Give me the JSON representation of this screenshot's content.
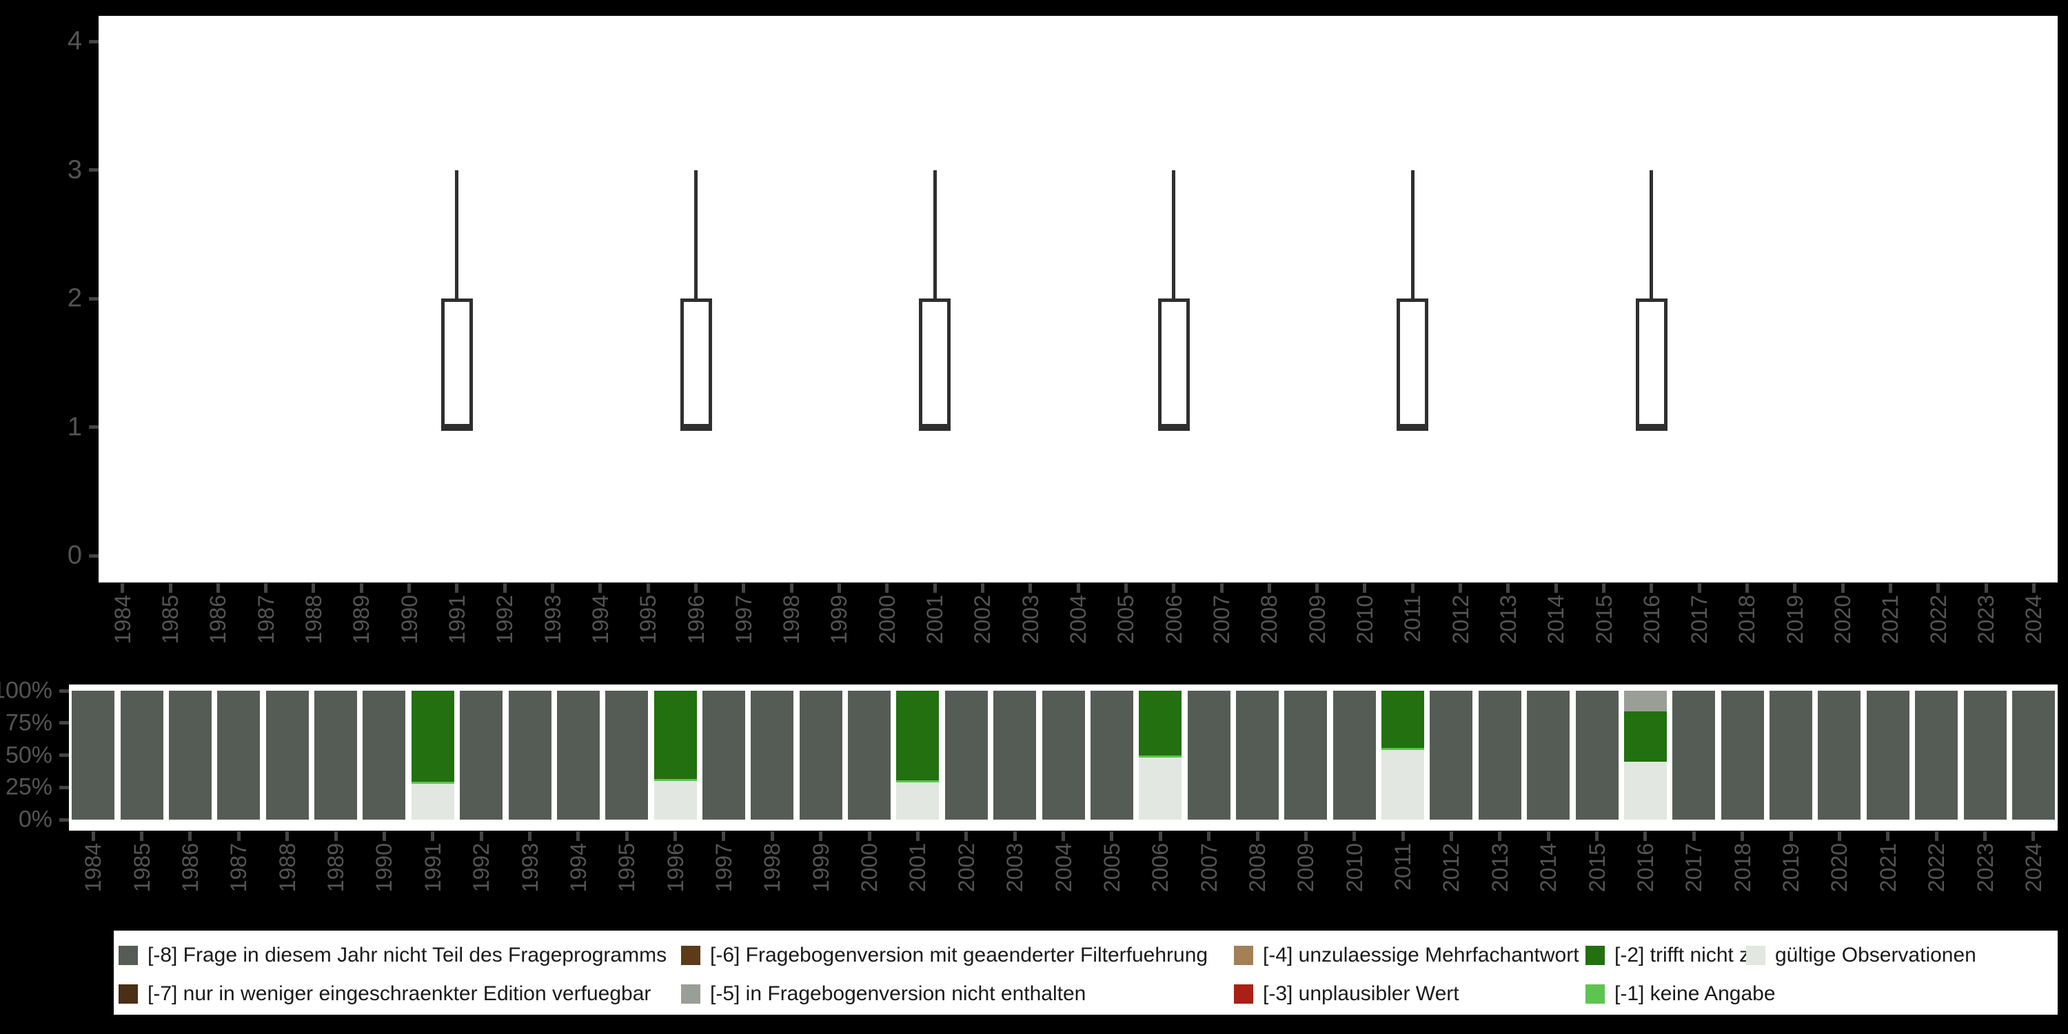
{
  "colors": {
    "background": "#000000",
    "panel": "#ffffff",
    "axis_text": "#545454",
    "tick": "#454545",
    "box_stroke": "#2f2f2f",
    "legend_text": "#1a1a1a",
    "legend_background": "#ffffff"
  },
  "legend": {
    "items": [
      {
        "key": "-8",
        "label": "[-8] Frage in diesem Jahr nicht Teil des Frageprogramms",
        "color": "#555c55"
      },
      {
        "key": "-7",
        "label": "[-7] nur in weniger eingeschraenkter Edition verfuegbar",
        "color": "#4a2e15"
      },
      {
        "key": "-6",
        "label": "[-6] Fragebogenversion mit geaenderter Filterfuehrung",
        "color": "#5d3a18"
      },
      {
        "key": "-5",
        "label": "[-5] in Fragebogenversion nicht enthalten",
        "color": "#999e96"
      },
      {
        "key": "-4",
        "label": "[-4] unzulaessige Mehrfachantwort",
        "color": "#a57f55"
      },
      {
        "key": "-3",
        "label": "[-3] unplausibler Wert",
        "color": "#aa1f16"
      },
      {
        "key": "-2",
        "label": "[-2] trifft nicht zu",
        "color": "#22700f"
      },
      {
        "key": "-1",
        "label": "[-1] keine Angabe",
        "color": "#5dc450"
      },
      {
        "key": "valid",
        "label": "gültige Observationen",
        "color": "#e2e7e1"
      }
    ]
  },
  "chart_data": [
    {
      "type": "boxplot",
      "title": "",
      "xlabel": "",
      "ylabel": "",
      "ylim": [
        0,
        4
      ],
      "yticks": [
        0,
        1,
        2,
        3,
        4
      ],
      "grid": false,
      "categories": [
        "1984",
        "1985",
        "1986",
        "1987",
        "1988",
        "1989",
        "1990",
        "1991",
        "1992",
        "1993",
        "1994",
        "1995",
        "1996",
        "1997",
        "1998",
        "1999",
        "2000",
        "2001",
        "2002",
        "2003",
        "2004",
        "2005",
        "2006",
        "2007",
        "2008",
        "2009",
        "2010",
        "2011",
        "2012",
        "2013",
        "2014",
        "2015",
        "2016",
        "2017",
        "2018",
        "2019",
        "2020",
        "2021",
        "2022",
        "2023",
        "2024"
      ],
      "boxes": [
        {
          "year": "1991",
          "whisker_low": 1,
          "q1": 1,
          "median": 1,
          "q3": 2,
          "whisker_high": 3
        },
        {
          "year": "1996",
          "whisker_low": 1,
          "q1": 1,
          "median": 1,
          "q3": 2,
          "whisker_high": 3
        },
        {
          "year": "2001",
          "whisker_low": 1,
          "q1": 1,
          "median": 1,
          "q3": 2,
          "whisker_high": 3
        },
        {
          "year": "2006",
          "whisker_low": 1,
          "q1": 1,
          "median": 1,
          "q3": 2,
          "whisker_high": 3
        },
        {
          "year": "2011",
          "whisker_low": 1,
          "q1": 1,
          "median": 1,
          "q3": 2,
          "whisker_high": 3
        },
        {
          "year": "2016",
          "whisker_low": 1,
          "q1": 1,
          "median": 1,
          "q3": 2,
          "whisker_high": 3
        }
      ]
    },
    {
      "type": "bar",
      "stacked": true,
      "unit": "percent",
      "title": "",
      "xlabel": "",
      "ylabel": "",
      "yticks_percent": [
        0,
        25,
        50,
        75,
        100
      ],
      "ytick_labels": [
        "0%",
        "25%",
        "50%",
        "75%",
        "100%"
      ],
      "categories": [
        "1984",
        "1985",
        "1986",
        "1987",
        "1988",
        "1989",
        "1990",
        "1991",
        "1992",
        "1993",
        "1994",
        "1995",
        "1996",
        "1997",
        "1998",
        "1999",
        "2000",
        "2001",
        "2002",
        "2003",
        "2004",
        "2005",
        "2006",
        "2007",
        "2008",
        "2009",
        "2010",
        "2011",
        "2012",
        "2013",
        "2014",
        "2015",
        "2016",
        "2017",
        "2018",
        "2019",
        "2020",
        "2021",
        "2022",
        "2023",
        "2024"
      ],
      "bars": [
        {
          "year": "1984",
          "segments": [
            {
              "key": "-8",
              "pct": 100
            }
          ]
        },
        {
          "year": "1985",
          "segments": [
            {
              "key": "-8",
              "pct": 100
            }
          ]
        },
        {
          "year": "1986",
          "segments": [
            {
              "key": "-8",
              "pct": 100
            }
          ]
        },
        {
          "year": "1987",
          "segments": [
            {
              "key": "-8",
              "pct": 100
            }
          ]
        },
        {
          "year": "1988",
          "segments": [
            {
              "key": "-8",
              "pct": 100
            }
          ]
        },
        {
          "year": "1989",
          "segments": [
            {
              "key": "-8",
              "pct": 100
            }
          ]
        },
        {
          "year": "1990",
          "segments": [
            {
              "key": "-8",
              "pct": 100
            }
          ]
        },
        {
          "year": "1991",
          "segments": [
            {
              "key": "valid",
              "pct": 28
            },
            {
              "key": "-1",
              "pct": 1.5
            },
            {
              "key": "-2",
              "pct": 70.5
            }
          ]
        },
        {
          "year": "1992",
          "segments": [
            {
              "key": "-8",
              "pct": 100
            }
          ]
        },
        {
          "year": "1993",
          "segments": [
            {
              "key": "-8",
              "pct": 100
            }
          ]
        },
        {
          "year": "1994",
          "segments": [
            {
              "key": "-8",
              "pct": 100
            }
          ]
        },
        {
          "year": "1995",
          "segments": [
            {
              "key": "-8",
              "pct": 100
            }
          ]
        },
        {
          "year": "1996",
          "segments": [
            {
              "key": "valid",
              "pct": 30
            },
            {
              "key": "-1",
              "pct": 1.5
            },
            {
              "key": "-2",
              "pct": 68.5
            }
          ]
        },
        {
          "year": "1997",
          "segments": [
            {
              "key": "-8",
              "pct": 100
            }
          ]
        },
        {
          "year": "1998",
          "segments": [
            {
              "key": "-8",
              "pct": 100
            }
          ]
        },
        {
          "year": "1999",
          "segments": [
            {
              "key": "-8",
              "pct": 100
            }
          ]
        },
        {
          "year": "2000",
          "segments": [
            {
              "key": "-8",
              "pct": 100
            }
          ]
        },
        {
          "year": "2001",
          "segments": [
            {
              "key": "valid",
              "pct": 29
            },
            {
              "key": "-1",
              "pct": 1.5
            },
            {
              "key": "-2",
              "pct": 69.5
            }
          ]
        },
        {
          "year": "2002",
          "segments": [
            {
              "key": "-8",
              "pct": 100
            }
          ]
        },
        {
          "year": "2003",
          "segments": [
            {
              "key": "-8",
              "pct": 100
            }
          ]
        },
        {
          "year": "2004",
          "segments": [
            {
              "key": "-8",
              "pct": 100
            }
          ]
        },
        {
          "year": "2005",
          "segments": [
            {
              "key": "-8",
              "pct": 100
            }
          ]
        },
        {
          "year": "2006",
          "segments": [
            {
              "key": "valid",
              "pct": 48
            },
            {
              "key": "-1",
              "pct": 1.5
            },
            {
              "key": "-2",
              "pct": 50.5
            }
          ]
        },
        {
          "year": "2007",
          "segments": [
            {
              "key": "-8",
              "pct": 100
            }
          ]
        },
        {
          "year": "2008",
          "segments": [
            {
              "key": "-8",
              "pct": 100
            }
          ]
        },
        {
          "year": "2009",
          "segments": [
            {
              "key": "-8",
              "pct": 100
            }
          ]
        },
        {
          "year": "2010",
          "segments": [
            {
              "key": "-8",
              "pct": 100
            }
          ]
        },
        {
          "year": "2011",
          "segments": [
            {
              "key": "valid",
              "pct": 54
            },
            {
              "key": "-1",
              "pct": 1.5
            },
            {
              "key": "-2",
              "pct": 44.5
            }
          ]
        },
        {
          "year": "2012",
          "segments": [
            {
              "key": "-8",
              "pct": 100
            }
          ]
        },
        {
          "year": "2013",
          "segments": [
            {
              "key": "-8",
              "pct": 100
            }
          ]
        },
        {
          "year": "2014",
          "segments": [
            {
              "key": "-8",
              "pct": 100
            }
          ]
        },
        {
          "year": "2015",
          "segments": [
            {
              "key": "-8",
              "pct": 100
            }
          ]
        },
        {
          "year": "2016",
          "segments": [
            {
              "key": "valid",
              "pct": 45
            },
            {
              "key": "-2",
              "pct": 39
            },
            {
              "key": "-5",
              "pct": 16
            }
          ]
        },
        {
          "year": "2017",
          "segments": [
            {
              "key": "-8",
              "pct": 100
            }
          ]
        },
        {
          "year": "2018",
          "segments": [
            {
              "key": "-8",
              "pct": 100
            }
          ]
        },
        {
          "year": "2019",
          "segments": [
            {
              "key": "-8",
              "pct": 100
            }
          ]
        },
        {
          "year": "2020",
          "segments": [
            {
              "key": "-8",
              "pct": 100
            }
          ]
        },
        {
          "year": "2021",
          "segments": [
            {
              "key": "-8",
              "pct": 100
            }
          ]
        },
        {
          "year": "2022",
          "segments": [
            {
              "key": "-8",
              "pct": 100
            }
          ]
        },
        {
          "year": "2023",
          "segments": [
            {
              "key": "-8",
              "pct": 100
            }
          ]
        },
        {
          "year": "2024",
          "segments": [
            {
              "key": "-8",
              "pct": 100
            }
          ]
        }
      ]
    }
  ]
}
